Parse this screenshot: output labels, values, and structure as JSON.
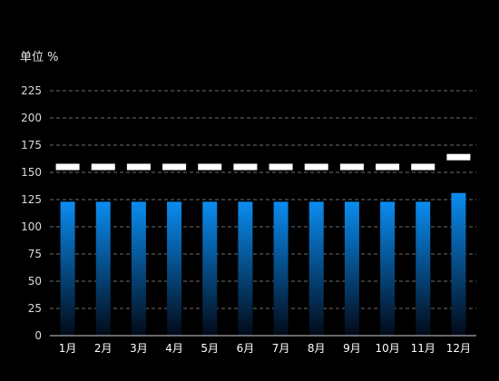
{
  "chart_data": {
    "type": "bar",
    "ylabel": "单位 %",
    "ylim": [
      0,
      225
    ],
    "yticks": [
      0,
      25,
      50,
      75,
      100,
      125,
      150,
      175,
      200,
      225
    ],
    "grid": true,
    "categories": [
      "1月",
      "2月",
      "3月",
      "4月",
      "5月",
      "6月",
      "7月",
      "8月",
      "9月",
      "10月",
      "11月",
      "12月"
    ],
    "series": [
      {
        "kind": "bar",
        "values": [
          123,
          123,
          123,
          123,
          123,
          123,
          123,
          123,
          123,
          123,
          123,
          131
        ]
      },
      {
        "kind": "marker",
        "values": [
          155,
          155,
          155,
          155,
          155,
          155,
          155,
          155,
          155,
          155,
          155,
          164
        ]
      }
    ],
    "colors": {
      "background": "#000000",
      "bar_top": "#0a8cf0",
      "bar_bottom": "#020a18",
      "marker": "#ffffff",
      "grid": "#6e6e6e",
      "axis": "#d0d0d0"
    }
  }
}
